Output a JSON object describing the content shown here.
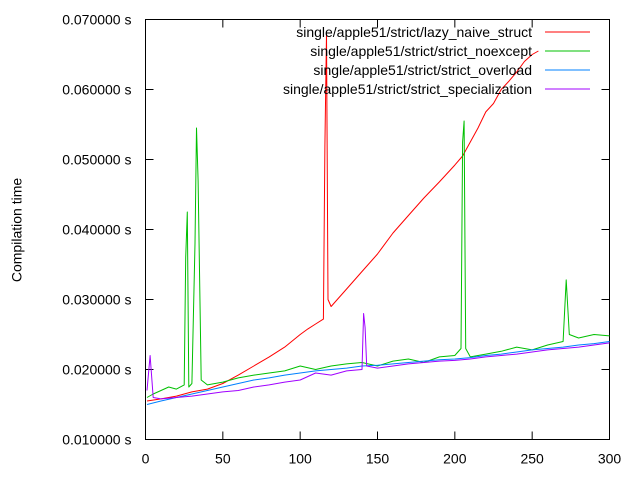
{
  "chart_data": {
    "type": "line",
    "title": "",
    "xlabel": "",
    "ylabel": "Compilation time",
    "xlim": [
      0,
      300
    ],
    "ylim": [
      0.01,
      0.07
    ],
    "x_ticks": [
      0,
      50,
      100,
      150,
      200,
      250,
      300
    ],
    "x_tick_labels": [
      "0",
      "50",
      "100",
      "150",
      "200",
      "250",
      "300"
    ],
    "y_ticks": [
      0.01,
      0.02,
      0.03,
      0.04,
      0.05,
      0.06,
      0.07
    ],
    "y_tick_labels": [
      "0.010000 s",
      "0.020000 s",
      "0.030000 s",
      "0.040000 s",
      "0.050000 s",
      "0.060000 s",
      "0.070000 s"
    ],
    "grid": false,
    "legend_position": "top-right",
    "series": [
      {
        "name": "single/apple51/strict/lazy_naive_struct",
        "color": "#ff0000",
        "x": [
          1,
          10,
          20,
          30,
          40,
          50,
          60,
          70,
          80,
          90,
          100,
          105,
          110,
          115,
          116,
          117,
          118,
          120,
          130,
          140,
          150,
          160,
          170,
          180,
          190,
          200,
          205,
          210,
          215,
          220,
          225,
          230,
          235,
          240,
          245,
          250,
          254
        ],
        "y": [
          0.0155,
          0.0158,
          0.0162,
          0.0168,
          0.0172,
          0.018,
          0.0192,
          0.0205,
          0.0218,
          0.0232,
          0.025,
          0.0258,
          0.0265,
          0.0272,
          0.052,
          0.068,
          0.03,
          0.029,
          0.0315,
          0.034,
          0.0365,
          0.0395,
          0.042,
          0.0445,
          0.0468,
          0.0492,
          0.0505,
          0.0525,
          0.0545,
          0.0568,
          0.058,
          0.06,
          0.0612,
          0.0625,
          0.064,
          0.065,
          0.0655
        ]
      },
      {
        "name": "single/apple51/strict/strict_noexcept",
        "color": "#00c000",
        "x": [
          1,
          5,
          10,
          15,
          20,
          25,
          26,
          27,
          28,
          30,
          32,
          33,
          34,
          36,
          40,
          50,
          60,
          70,
          80,
          90,
          100,
          110,
          120,
          130,
          140,
          150,
          160,
          170,
          180,
          190,
          200,
          204,
          205,
          206,
          207,
          210,
          220,
          230,
          240,
          250,
          260,
          270,
          272,
          274,
          280,
          290,
          300
        ],
        "y": [
          0.016,
          0.0165,
          0.017,
          0.0175,
          0.0172,
          0.0178,
          0.036,
          0.0425,
          0.0175,
          0.018,
          0.038,
          0.0545,
          0.047,
          0.0185,
          0.0178,
          0.0182,
          0.0188,
          0.0192,
          0.0195,
          0.0198,
          0.0205,
          0.02,
          0.0205,
          0.0208,
          0.021,
          0.0205,
          0.0212,
          0.0215,
          0.021,
          0.0218,
          0.022,
          0.023,
          0.0525,
          0.0555,
          0.023,
          0.0218,
          0.0222,
          0.0226,
          0.0232,
          0.0228,
          0.0235,
          0.024,
          0.0328,
          0.025,
          0.0245,
          0.025,
          0.0248
        ]
      },
      {
        "name": "single/apple51/strict/strict_overload",
        "color": "#0080ff",
        "x": [
          1,
          10,
          20,
          30,
          40,
          50,
          60,
          70,
          80,
          90,
          100,
          110,
          120,
          130,
          140,
          150,
          160,
          170,
          180,
          190,
          200,
          210,
          220,
          230,
          240,
          250,
          260,
          270,
          280,
          290,
          300
        ],
        "y": [
          0.015,
          0.0155,
          0.016,
          0.0165,
          0.017,
          0.0175,
          0.018,
          0.0185,
          0.0188,
          0.0192,
          0.0195,
          0.0198,
          0.02,
          0.0202,
          0.0205,
          0.0206,
          0.0208,
          0.021,
          0.0212,
          0.0214,
          0.0215,
          0.0217,
          0.022,
          0.0222,
          0.0225,
          0.0228,
          0.023,
          0.0232,
          0.0235,
          0.0237,
          0.024
        ]
      },
      {
        "name": "single/apple51/strict/strict_specialization",
        "color": "#a000ff",
        "x": [
          1,
          3,
          5,
          10,
          20,
          30,
          40,
          50,
          60,
          70,
          80,
          90,
          100,
          110,
          120,
          130,
          140,
          141,
          142,
          143,
          150,
          160,
          170,
          180,
          190,
          200,
          210,
          220,
          230,
          240,
          250,
          260,
          270,
          280,
          290,
          300
        ],
        "y": [
          0.017,
          0.022,
          0.016,
          0.0158,
          0.016,
          0.0162,
          0.0165,
          0.0168,
          0.017,
          0.0175,
          0.0178,
          0.0182,
          0.0185,
          0.0195,
          0.0192,
          0.0198,
          0.02,
          0.028,
          0.026,
          0.0205,
          0.0202,
          0.0205,
          0.0208,
          0.021,
          0.0212,
          0.0213,
          0.0215,
          0.0218,
          0.022,
          0.0222,
          0.0225,
          0.0228,
          0.023,
          0.0232,
          0.0235,
          0.0238
        ]
      }
    ]
  }
}
